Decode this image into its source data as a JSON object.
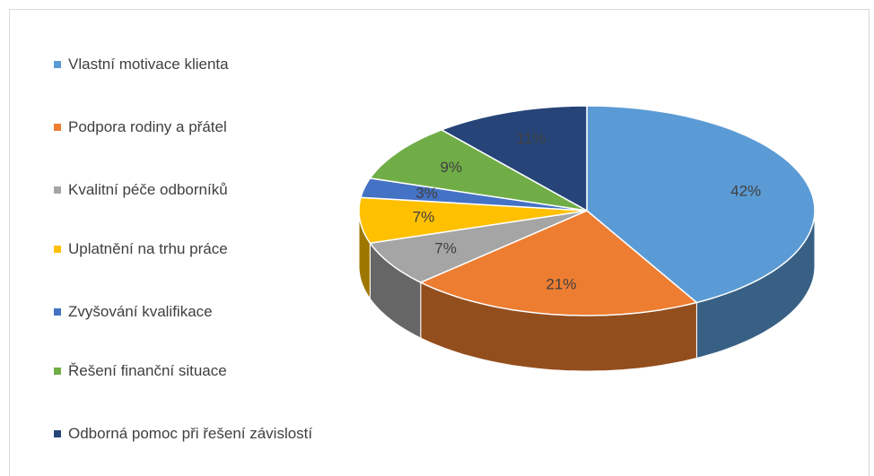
{
  "chart_data": {
    "type": "pie",
    "categories": [
      "Vlastní motivace klienta",
      "Podpora rodiny a přátel",
      "Kvalitní péče odborníků",
      "Uplatnění na trhu práce",
      "Zvyšování kvalifikace",
      "Řešení finanční situace",
      "Odborná pomoc při řešení závislostí"
    ],
    "values": [
      42,
      21,
      7,
      7,
      3,
      9,
      11
    ],
    "value_labels": [
      "42%",
      "21%",
      "7%",
      "7%",
      "3%",
      "9%",
      "11%"
    ],
    "colors": [
      "#5b9bd5",
      "#ed7d31",
      "#a5a5a5",
      "#ffc000",
      "#4472c4",
      "#70ad47",
      "#264478"
    ],
    "legend": "left"
  }
}
